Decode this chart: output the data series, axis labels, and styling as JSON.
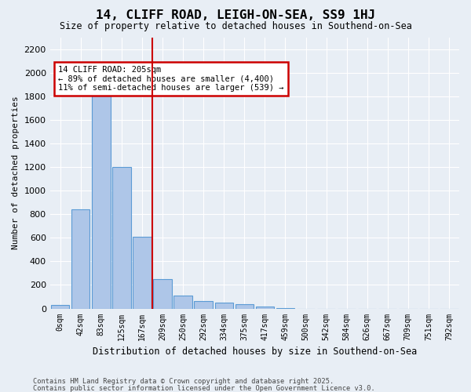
{
  "title": "14, CLIFF ROAD, LEIGH-ON-SEA, SS9 1HJ",
  "subtitle": "Size of property relative to detached houses in Southend-on-Sea",
  "xlabel": "Distribution of detached houses by size in Southend-on-Sea",
  "ylabel": "Number of detached properties",
  "bar_color": "#aec6e8",
  "bar_edge_color": "#5b9bd5",
  "bg_color": "#e8eef5",
  "grid_color": "#ffffff",
  "annotation_box_color": "#cc0000",
  "vline_color": "#cc0000",
  "annotation_title": "14 CLIFF ROAD: 205sqm",
  "annotation_line1": "← 89% of detached houses are smaller (4,400)",
  "annotation_line2": "11% of semi-detached houses are larger (539) →",
  "bins": [
    "0sqm",
    "42sqm",
    "83sqm",
    "125sqm",
    "167sqm",
    "209sqm",
    "250sqm",
    "292sqm",
    "334sqm",
    "375sqm",
    "417sqm",
    "459sqm",
    "500sqm",
    "542sqm",
    "584sqm",
    "626sqm",
    "667sqm",
    "709sqm",
    "751sqm",
    "792sqm"
  ],
  "values": [
    30,
    840,
    1820,
    1200,
    610,
    250,
    110,
    65,
    50,
    40,
    20,
    5,
    0,
    0,
    0,
    0,
    0,
    0,
    0,
    0
  ],
  "ylim": [
    0,
    2300
  ],
  "yticks": [
    0,
    200,
    400,
    600,
    800,
    1000,
    1200,
    1400,
    1600,
    1800,
    2000,
    2200
  ],
  "vline_x": 4.5,
  "footer1": "Contains HM Land Registry data © Crown copyright and database right 2025.",
  "footer2": "Contains public sector information licensed under the Open Government Licence v3.0."
}
